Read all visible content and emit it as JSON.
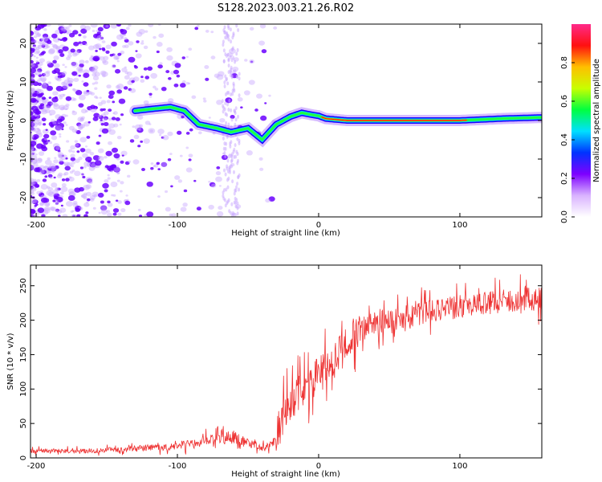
{
  "title": "S128.2023.003.21.26.R02",
  "colors": {
    "snr_line": "#ee3333",
    "spectrogram_cloud": "#8a3cff",
    "colorbar_stops": [
      "#ffffff",
      "#d9b3ff",
      "#7d00ff",
      "#0033ff",
      "#00e0ff",
      "#00ff40",
      "#c8ff00",
      "#ffbf00",
      "#ff1010",
      "#ff2a8a"
    ]
  },
  "chart_data": [
    {
      "type": "heatmap",
      "name": "spectrogram",
      "xlabel": "Height of straight line (km)",
      "ylabel": "Frequency (Hz)",
      "xlim": [
        -204,
        158
      ],
      "ylim": [
        -25,
        25
      ],
      "xticks": [
        -200,
        -100,
        0,
        100
      ],
      "xtick_labels": [
        "-200",
        "-100",
        "0",
        "100"
      ],
      "yticks": [
        -20,
        -10,
        0,
        10,
        20
      ],
      "ytick_labels": [
        "-20",
        "-10",
        "0",
        "10",
        "20"
      ],
      "colorbar": {
        "label": "Normalized spectral amplitude",
        "range": [
          0,
          1
        ],
        "ticks": [
          0,
          0.2,
          0.4,
          0.6,
          0.8
        ],
        "tick_labels": [
          "0.0",
          "0.2",
          "0.4",
          "0.6",
          "0.8"
        ]
      },
      "ridge": {
        "x": [
          -130,
          -118,
          -105,
          -95,
          -85,
          -72,
          -62,
          -50,
          -40,
          -30,
          -20,
          -12,
          -5,
          0,
          5,
          20,
          60,
          100,
          130,
          158
        ],
        "y": [
          2.5,
          3,
          3.5,
          2.5,
          -1,
          -2,
          -3,
          -2,
          -5,
          -1,
          1,
          2,
          1.5,
          1.2,
          0.5,
          0,
          0,
          0,
          0.5,
          0.8
        ]
      }
    },
    {
      "type": "line",
      "name": "snr",
      "xlabel": "Height of straight line (km)",
      "ylabel": "SNR (10 * v/v)",
      "xlim": [
        -204,
        158
      ],
      "ylim": [
        0,
        280
      ],
      "xticks": [
        -200,
        -100,
        0,
        100
      ],
      "xtick_labels": [
        "-200",
        "-100",
        "0",
        "100"
      ],
      "yticks": [
        0,
        50,
        100,
        150,
        200,
        250
      ],
      "ytick_labels": [
        "0",
        "50",
        "100",
        "150",
        "200",
        "250"
      ],
      "trend": {
        "x": [
          -204,
          -170,
          -140,
          -110,
          -90,
          -70,
          -60,
          -50,
          -40,
          -32,
          -28,
          -20,
          -10,
          0,
          10,
          20,
          25,
          40,
          60,
          80,
          100,
          120,
          140,
          158
        ],
        "y": [
          10,
          10,
          12,
          16,
          20,
          28,
          30,
          22,
          15,
          22,
          45,
          80,
          105,
          120,
          140,
          165,
          185,
          195,
          205,
          212,
          220,
          225,
          230,
          232
        ]
      }
    }
  ]
}
